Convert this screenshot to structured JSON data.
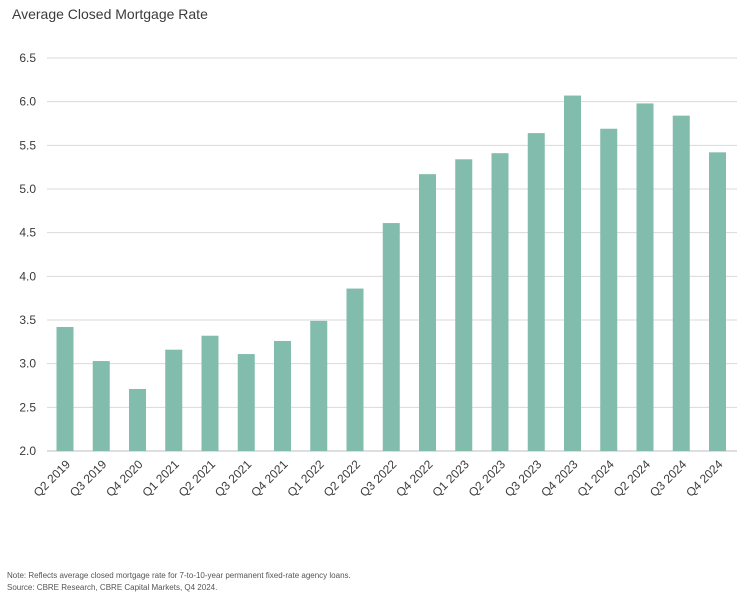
{
  "chart_data": {
    "type": "bar",
    "title": "Average Closed Mortgage Rate",
    "xlabel": "",
    "ylabel": "",
    "ylim": [
      2.0,
      6.5
    ],
    "yticks": [
      "6.5",
      "6.0",
      "5.5",
      "5.0",
      "4.5",
      "4.0",
      "3.5",
      "3.0",
      "2.5",
      "2.0"
    ],
    "grid": true,
    "bar_color": "#82bcad",
    "grid_color": "#d9d9d9",
    "categories": [
      "Q2 2019",
      "Q3 2019",
      "Q4 2020",
      "Q1 2021",
      "Q2 2021",
      "Q3 2021",
      "Q4 2021",
      "Q1 2022",
      "Q2 2022",
      "Q3 2022",
      "Q4 2022",
      "Q1 2023",
      "Q2 2023",
      "Q3 2023",
      "Q4 2023",
      "Q1 2024",
      "Q2 2024",
      "Q3 2024",
      "Q4 2024"
    ],
    "values": [
      3.42,
      3.03,
      2.71,
      3.16,
      3.32,
      3.11,
      3.26,
      3.49,
      3.86,
      4.61,
      5.17,
      5.34,
      5.41,
      5.64,
      6.07,
      5.69,
      5.98,
      5.84,
      5.42
    ]
  },
  "notes": {
    "note": "Note: Reflects average closed mortgage rate for 7-to-10-year permanent fixed-rate agency loans.",
    "source": "Source: CBRE Research, CBRE Capital Markets, Q4 2024."
  }
}
